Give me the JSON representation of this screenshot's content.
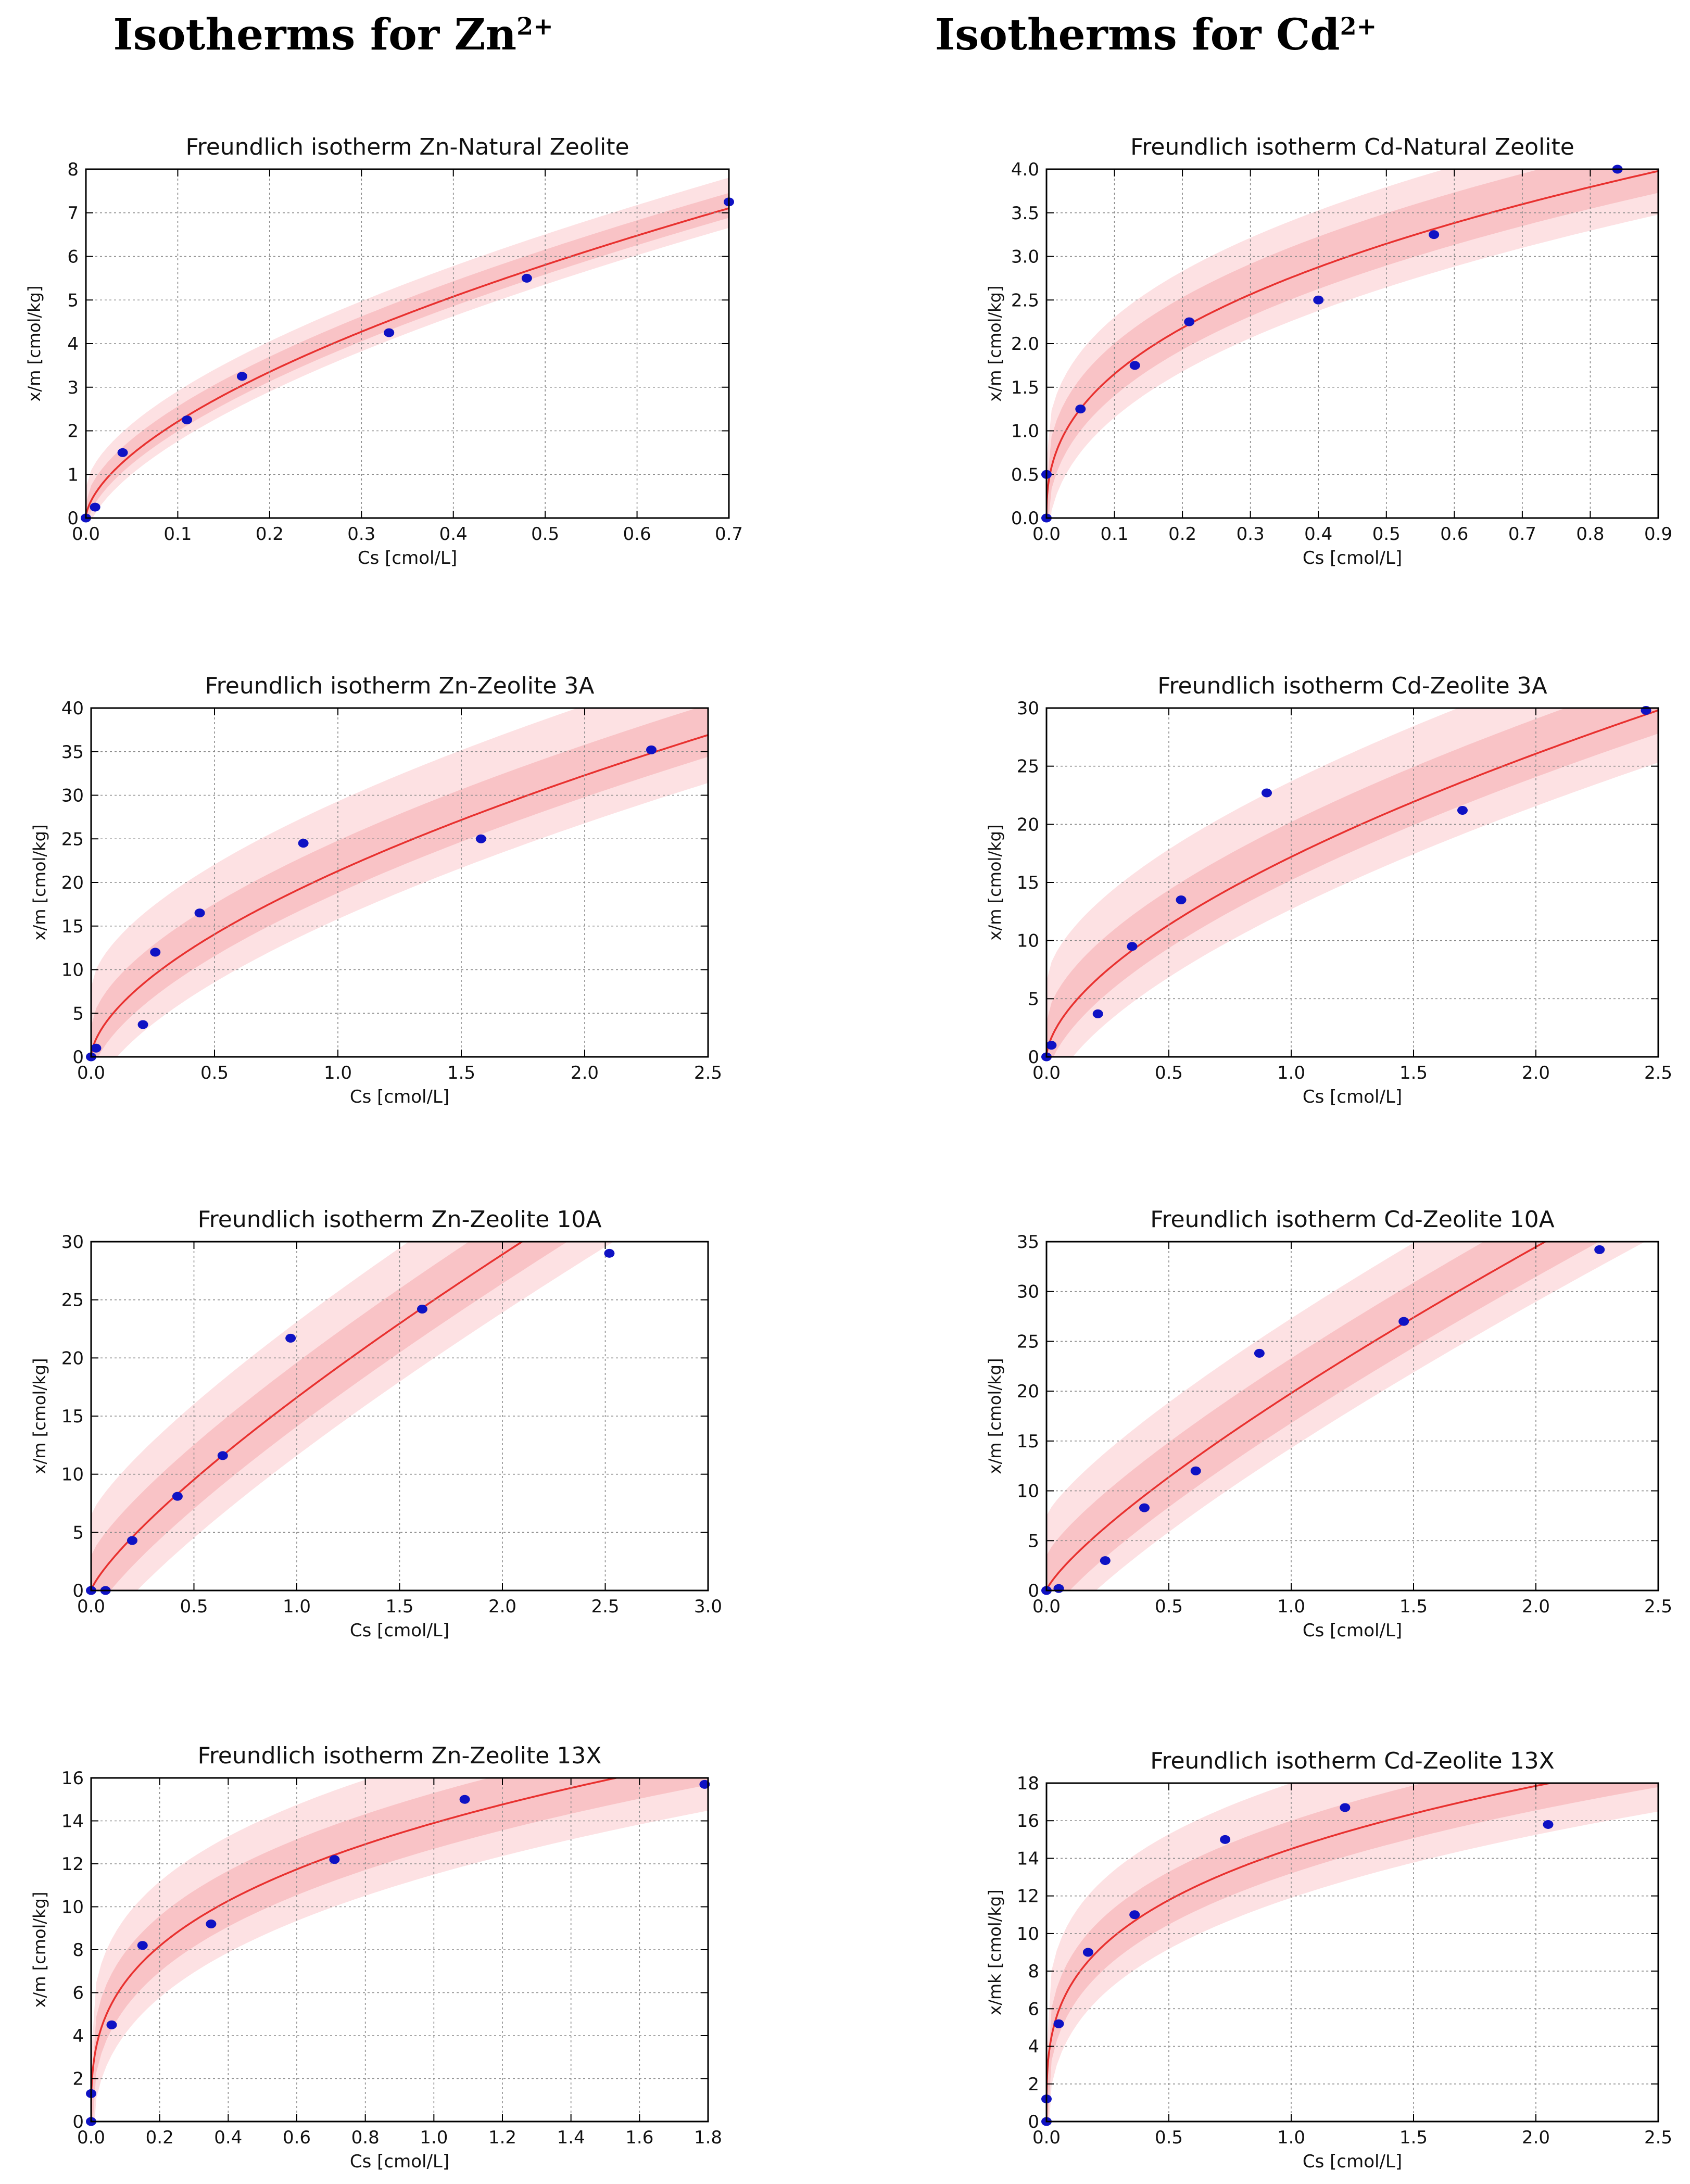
{
  "headers": {
    "zn": {
      "text": "Isotherms for Zn",
      "sup": "2+"
    },
    "cd": {
      "text": "Isotherms for Cd",
      "sup": "2+"
    }
  },
  "colors": {
    "fit": "#e8312f",
    "points": "#0f12c4",
    "band_outer": "#fde1e3",
    "band_inner": "#f9c3c6",
    "grid": "#8a8a8a"
  },
  "chart_data": [
    {
      "id": "zn-natural",
      "type": "scatter",
      "title": "Freundlich isotherm Zn-Natural Zeolite",
      "xlabel": "Cs [cmol/L]",
      "ylabel": "x/m [cmol/kg]",
      "xlim": [
        0,
        0.7
      ],
      "ylim": [
        0,
        8
      ],
      "xticks": [
        "0.0",
        "0.1",
        "0.2",
        "0.3",
        "0.4",
        "0.5",
        "0.6",
        "0.7"
      ],
      "yticks": [
        "0",
        "1",
        "2",
        "3",
        "4",
        "5",
        "6",
        "7",
        "8"
      ],
      "points": {
        "x": [
          0.0,
          0.01,
          0.04,
          0.11,
          0.17,
          0.33,
          0.48,
          0.7
        ],
        "y": [
          0.0,
          0.25,
          1.5,
          2.25,
          3.25,
          4.25,
          5.5,
          7.25
        ]
      },
      "fit": {
        "model": "Freundlich",
        "k": 8.8,
        "n": 0.6
      },
      "band_inner": [
        0.35,
        0.22
      ],
      "band_outer": [
        0.7,
        0.45
      ]
    },
    {
      "id": "cd-natural",
      "type": "scatter",
      "title": "Freundlich isotherm Cd-Natural Zeolite",
      "xlabel": "Cs [cmol/L]",
      "ylabel": "x/m [cmol/kg]",
      "xlim": [
        0,
        0.9
      ],
      "ylim": [
        0,
        4.0
      ],
      "xticks": [
        "0.0",
        "0.1",
        "0.2",
        "0.3",
        "0.4",
        "0.5",
        "0.6",
        "0.7",
        "0.8",
        "0.9"
      ],
      "yticks": [
        "0.0",
        "0.5",
        "1.0",
        "1.5",
        "2.0",
        "2.5",
        "3.0",
        "3.5",
        "4.0"
      ],
      "points": {
        "x": [
          0.0,
          0.0,
          0.05,
          0.13,
          0.21,
          0.4,
          0.57,
          0.84
        ],
        "y": [
          0.0,
          0.5,
          1.25,
          1.75,
          2.25,
          2.5,
          3.25,
          4.0
        ]
      },
      "fit": {
        "model": "Freundlich",
        "k": 4.15,
        "n": 0.4
      },
      "band_inner": [
        0.35,
        0.25
      ],
      "band_outer": [
        0.65,
        0.5
      ]
    },
    {
      "id": "zn-3a",
      "type": "scatter",
      "title": "Freundlich isotherm Zn-Zeolite 3A",
      "xlabel": "Cs [cmol/L]",
      "ylabel": "x/m [cmol/kg]",
      "xlim": [
        0,
        2.5
      ],
      "ylim": [
        0,
        40
      ],
      "xticks": [
        "0.0",
        "0.5",
        "1.0",
        "1.5",
        "2.0",
        "2.5"
      ],
      "yticks": [
        "0",
        "5",
        "10",
        "15",
        "20",
        "25",
        "30",
        "35",
        "40"
      ],
      "points": {
        "x": [
          0.0,
          0.02,
          0.21,
          0.26,
          0.44,
          0.86,
          1.58,
          2.27
        ],
        "y": [
          0.0,
          1.0,
          3.7,
          12.0,
          16.5,
          24.5,
          25.0,
          35.2
        ]
      },
      "fit": {
        "model": "Freundlich",
        "k": 21.3,
        "n": 0.6
      },
      "band_inner": [
        3.5,
        2.5
      ],
      "band_outer": [
        8.0,
        5.5
      ]
    },
    {
      "id": "cd-3a",
      "type": "scatter",
      "title": "Freundlich isotherm Cd-Zeolite 3A",
      "xlabel": "Cs [cmol/L]",
      "ylabel": "x/m [cmol/kg]",
      "xlim": [
        0,
        2.5
      ],
      "ylim": [
        0,
        30
      ],
      "xticks": [
        "0.0",
        "0.5",
        "1.0",
        "1.5",
        "2.0",
        "2.5"
      ],
      "yticks": [
        "0",
        "5",
        "10",
        "15",
        "20",
        "25",
        "30"
      ],
      "points": {
        "x": [
          0.0,
          0.02,
          0.21,
          0.35,
          0.55,
          0.9,
          1.7,
          2.45
        ],
        "y": [
          0.0,
          1.0,
          3.7,
          9.5,
          13.5,
          22.7,
          21.2,
          29.8
        ]
      },
      "fit": {
        "model": "Freundlich",
        "k": 17.2,
        "n": 0.6
      },
      "band_inner": [
        3.0,
        2.0
      ],
      "band_outer": [
        6.5,
        4.5
      ]
    },
    {
      "id": "zn-10a",
      "type": "scatter",
      "title": "Freundlich isotherm Zn-Zeolite 10A",
      "xlabel": "Cs [cmol/L]",
      "ylabel": "x/m [cmol/kg]",
      "xlim": [
        0,
        3.0
      ],
      "ylim": [
        0,
        30
      ],
      "xticks": [
        "0.0",
        "0.5",
        "1.0",
        "1.5",
        "2.0",
        "2.5",
        "3.0"
      ],
      "yticks": [
        "0",
        "5",
        "10",
        "15",
        "20",
        "25",
        "30"
      ],
      "points": {
        "x": [
          0.0,
          0.07,
          0.2,
          0.42,
          0.64,
          0.97,
          1.61,
          2.52
        ],
        "y": [
          0.0,
          0.0,
          4.3,
          8.1,
          11.6,
          21.7,
          24.2,
          29.0
        ]
      },
      "fit": {
        "model": "Freundlich",
        "k": 16.6,
        "n": 0.8
      },
      "band_inner": [
        3.0,
        2.5
      ],
      "band_outer": [
        6.5,
        5.0
      ]
    },
    {
      "id": "cd-10a",
      "type": "scatter",
      "title": "Freundlich isotherm Cd-Zeolite 10A",
      "xlabel": "Cs [cmol/L]",
      "ylabel": "x/m [cmol/kg]",
      "xlim": [
        0,
        2.5
      ],
      "ylim": [
        0,
        35
      ],
      "xticks": [
        "0.0",
        "0.5",
        "1.0",
        "1.5",
        "2.0",
        "2.5"
      ],
      "yticks": [
        "0",
        "5",
        "10",
        "15",
        "20",
        "25",
        "30",
        "35"
      ],
      "points": {
        "x": [
          0.0,
          0.05,
          0.24,
          0.4,
          0.61,
          0.87,
          1.46,
          2.26
        ],
        "y": [
          0.0,
          0.2,
          3.0,
          8.3,
          12.0,
          23.8,
          27.0,
          34.2
        ]
      },
      "fit": {
        "model": "Freundlich",
        "k": 19.8,
        "n": 0.8
      },
      "band_inner": [
        3.5,
        3.0
      ],
      "band_outer": [
        7.5,
        5.5
      ]
    },
    {
      "id": "zn-13x",
      "type": "scatter",
      "title": "Freundlich isotherm Zn-Zeolite 13X",
      "xlabel": "Cs [cmol/L]",
      "ylabel": "x/m [cmol/kg]",
      "xlim": [
        0,
        1.8
      ],
      "ylim": [
        0,
        16
      ],
      "xticks": [
        "0.0",
        "0.2",
        "0.4",
        "0.6",
        "0.8",
        "1.0",
        "1.2",
        "1.4",
        "1.6",
        "1.8"
      ],
      "yticks": [
        "0",
        "2",
        "4",
        "6",
        "8",
        "10",
        "12",
        "14",
        "16"
      ],
      "points": {
        "x": [
          0.0,
          0.0,
          0.06,
          0.15,
          0.35,
          0.71,
          1.09,
          1.79
        ],
        "y": [
          0.0,
          1.3,
          4.5,
          8.2,
          9.2,
          12.2,
          15.0,
          15.7
        ]
      },
      "fit": {
        "model": "Freundlich",
        "k": 13.9,
        "n": 0.33
      },
      "band_inner": [
        1.4,
        1.2
      ],
      "band_outer": [
        3.0,
        2.4
      ]
    },
    {
      "id": "cd-13x",
      "type": "scatter",
      "title": "Freundlich isotherm Cd-Zeolite 13X",
      "xlabel": "Cs [cmol/L]",
      "ylabel": "x/mk [cmol/kg]",
      "xlim": [
        0,
        2.5
      ],
      "ylim": [
        0,
        18
      ],
      "xticks": [
        "0.0",
        "0.5",
        "1.0",
        "1.5",
        "2.0",
        "2.5"
      ],
      "yticks": [
        "0",
        "2",
        "4",
        "6",
        "8",
        "10",
        "12",
        "14",
        "16",
        "18"
      ],
      "points": {
        "x": [
          0.0,
          0.0,
          0.05,
          0.17,
          0.36,
          0.73,
          1.22,
          2.05
        ],
        "y": [
          0.0,
          1.2,
          5.2,
          9.0,
          11.0,
          15.0,
          16.7,
          15.8
        ]
      },
      "fit": {
        "model": "Freundlich",
        "k": 14.5,
        "n": 0.3
      },
      "band_inner": [
        1.5,
        1.3
      ],
      "band_outer": [
        3.5,
        2.6
      ]
    }
  ]
}
